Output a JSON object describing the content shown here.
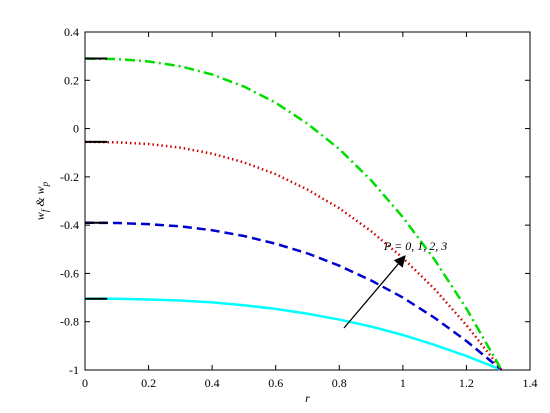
{
  "chart_data": {
    "type": "line",
    "xlabel": "r",
    "ylabel": [
      "w",
      "f",
      " & w",
      "p"
    ],
    "annotation": "P = 0, 1, 2, 3",
    "xlim": [
      0,
      1.4
    ],
    "xticks": [
      0,
      0.2,
      0.4,
      0.6,
      0.8,
      1,
      1.2,
      1.4
    ],
    "ylim": [
      -1,
      0.4
    ],
    "yticks": [
      -1,
      -0.8,
      -0.6,
      -0.4,
      -0.2,
      0,
      0.2,
      0.4
    ],
    "series": [
      {
        "color": "#00ffff",
        "dash": "solid",
        "x": [
          0,
          0.1,
          0.2,
          0.3,
          0.4,
          0.5,
          0.6,
          0.7,
          0.8,
          0.9,
          1,
          1.1,
          1.2,
          1.3,
          1.31
        ],
        "values": [
          -0.705,
          -0.705,
          -0.708,
          -0.712,
          -0.72,
          -0.732,
          -0.747,
          -0.767,
          -0.791,
          -0.82,
          -0.855,
          -0.896,
          -0.942,
          -0.994,
          -1
        ]
      },
      {
        "color": "#0000cc",
        "dash": "dashed",
        "x": [
          0,
          0.1,
          0.2,
          0.3,
          0.4,
          0.5,
          0.6,
          0.7,
          0.8,
          0.9,
          1,
          1.1,
          1.2,
          1.3,
          1.31
        ],
        "values": [
          -0.39,
          -0.391,
          -0.396,
          -0.405,
          -0.421,
          -0.445,
          -0.477,
          -0.517,
          -0.568,
          -0.629,
          -0.7,
          -0.784,
          -0.88,
          -0.988,
          -1
        ]
      },
      {
        "color": "#cc0000",
        "dash": "dotted",
        "x": [
          0,
          0.1,
          0.2,
          0.3,
          0.4,
          0.5,
          0.6,
          0.7,
          0.8,
          0.9,
          1,
          1.1,
          1.2,
          1.3,
          1.31
        ],
        "values": [
          -0.055,
          -0.057,
          -0.064,
          -0.079,
          -0.104,
          -0.14,
          -0.189,
          -0.253,
          -0.33,
          -0.425,
          -0.536,
          -0.665,
          -0.814,
          -0.982,
          -1
        ]
      },
      {
        "color": "#00dd00",
        "dash": "dashdot",
        "x": [
          0,
          0.1,
          0.2,
          0.3,
          0.4,
          0.5,
          0.6,
          0.7,
          0.8,
          0.9,
          1,
          1.1,
          1.2,
          1.3,
          1.31
        ],
        "values": [
          0.29,
          0.288,
          0.278,
          0.258,
          0.224,
          0.174,
          0.107,
          0.02,
          -0.085,
          -0.214,
          -0.367,
          -0.543,
          -0.746,
          -0.975,
          -1
        ]
      },
      {
        "color": "#000000",
        "dash": "solid",
        "x": [
          0,
          0.07
        ],
        "values": [
          -0.705,
          -0.705
        ]
      },
      {
        "color": "#000000",
        "dash": "solid",
        "x": [
          0,
          0.07
        ],
        "values": [
          -0.39,
          -0.39
        ]
      },
      {
        "color": "#000000",
        "dash": "solid",
        "x": [
          0,
          0.07
        ],
        "values": [
          -0.055,
          -0.055
        ]
      },
      {
        "color": "#000000",
        "dash": "solid",
        "x": [
          0,
          0.07
        ],
        "values": [
          0.29,
          0.29
        ]
      }
    ]
  }
}
